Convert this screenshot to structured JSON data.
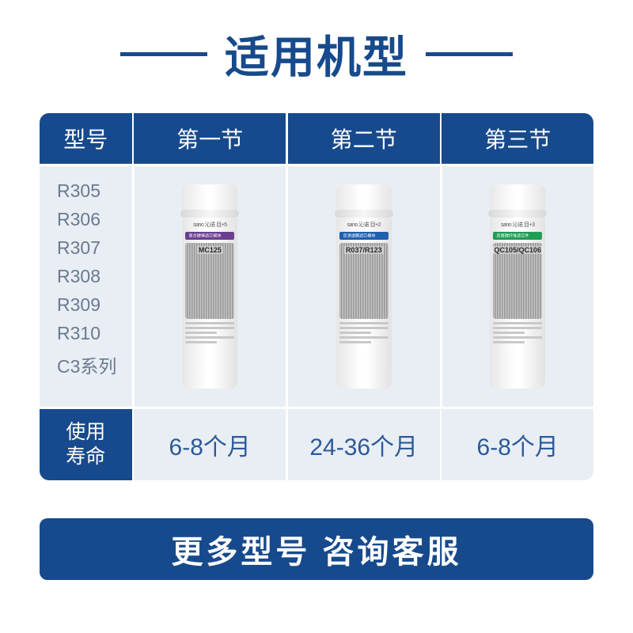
{
  "colors": {
    "primary": "#174a8c",
    "tablebg": "#e9eef4",
    "modeltext": "#6a7a90",
    "liftext": "#2b5a9a",
    "white": "#ffffff",
    "stripe1": "#6b3f8f",
    "stripe2": "#1f5fb0",
    "stripe3": "#1f9d55"
  },
  "title": "适用机型",
  "headers": {
    "c0": "型号",
    "c1": "第一节",
    "c2": "第二节",
    "c3": "第三节"
  },
  "models": [
    "R305",
    "R306",
    "R307",
    "R308",
    "R309",
    "R310",
    "C3系列"
  ],
  "filters": {
    "f1": {
      "brand": "sano 沁诺 目+5",
      "label": "复合碳棒滤芯模块",
      "code": "MC125"
    },
    "f2": {
      "brand": "sano 沁诺 目+2",
      "label": "反渗透膜滤芯模块",
      "code": "R037/R123"
    },
    "f3": {
      "brand": "sano 沁诺 目+3",
      "label": "后置碳纤维滤芯件",
      "code": "QC105/QC106"
    }
  },
  "life": {
    "label_l1": "使用",
    "label_l2": "寿命",
    "v1": "6-8个月",
    "v2": "24-36个月",
    "v3": "6-8个月"
  },
  "footer": "更多型号  咨询客服"
}
